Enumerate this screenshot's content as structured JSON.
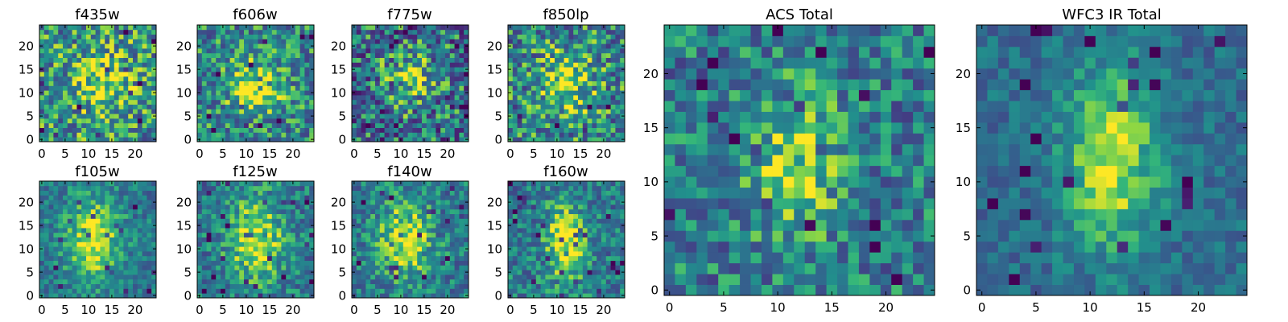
{
  "figure": {
    "panels": [
      {
        "title": "f435w",
        "xticks": [
          "0",
          "5",
          "10",
          "15",
          "20"
        ],
        "yticks": [
          "0",
          "5",
          "10",
          "15",
          "20"
        ]
      },
      {
        "title": "f606w",
        "xticks": [
          "0",
          "5",
          "10",
          "15",
          "20"
        ],
        "yticks": [
          "0",
          "5",
          "10",
          "15",
          "20"
        ]
      },
      {
        "title": "f775w",
        "xticks": [
          "0",
          "5",
          "10",
          "15",
          "20"
        ],
        "yticks": [
          "0",
          "5",
          "10",
          "15",
          "20"
        ]
      },
      {
        "title": "f850lp",
        "xticks": [
          "0",
          "5",
          "10",
          "15",
          "20"
        ],
        "yticks": [
          "0",
          "5",
          "10",
          "15",
          "20"
        ]
      },
      {
        "title": "f105w",
        "xticks": [
          "0",
          "5",
          "10",
          "15",
          "20"
        ],
        "yticks": [
          "0",
          "5",
          "10",
          "15",
          "20"
        ]
      },
      {
        "title": "f125w",
        "xticks": [
          "0",
          "5",
          "10",
          "15",
          "20"
        ],
        "yticks": [
          "0",
          "5",
          "10",
          "15",
          "20"
        ]
      },
      {
        "title": "f140w",
        "xticks": [
          "0",
          "5",
          "10",
          "15",
          "20"
        ],
        "yticks": [
          "0",
          "5",
          "10",
          "15",
          "20"
        ]
      },
      {
        "title": "f160w",
        "xticks": [
          "0",
          "5",
          "10",
          "15",
          "20"
        ],
        "yticks": [
          "0",
          "5",
          "10",
          "15",
          "20"
        ]
      },
      {
        "title": "ACS Total",
        "xticks": [
          "0",
          "5",
          "10",
          "15",
          "20"
        ],
        "yticks": [
          "0",
          "5",
          "10",
          "15",
          "20"
        ]
      },
      {
        "title": "WFC3 IR Total",
        "xticks": [
          "0",
          "5",
          "10",
          "15",
          "20"
        ],
        "yticks": [
          "0",
          "5",
          "10",
          "15",
          "20"
        ]
      }
    ]
  },
  "chart_data": [
    {
      "type": "heatmap",
      "title": "f435w",
      "grid_size": 25,
      "xlim": [
        -0.5,
        24.5
      ],
      "ylim": [
        -0.5,
        24.5
      ],
      "colormap": "viridis",
      "peak": [
        13,
        12
      ],
      "spread": [
        4,
        4
      ],
      "peak_level": 0.35,
      "background": 0.6,
      "noise": 0.45,
      "grid": false
    },
    {
      "type": "heatmap",
      "title": "f606w",
      "grid_size": 25,
      "xlim": [
        -0.5,
        24.5
      ],
      "ylim": [
        -0.5,
        24.5
      ],
      "colormap": "viridis",
      "peak": [
        12,
        11
      ],
      "spread": [
        4,
        4
      ],
      "peak_level": 0.4,
      "background": 0.55,
      "noise": 0.4,
      "grid": false
    },
    {
      "type": "heatmap",
      "title": "f775w",
      "grid_size": 25,
      "xlim": [
        -0.5,
        24.5
      ],
      "ylim": [
        -0.5,
        24.5
      ],
      "colormap": "viridis",
      "peak": [
        12,
        13
      ],
      "spread": [
        4,
        5
      ],
      "peak_level": 0.3,
      "background": 0.45,
      "noise": 0.5,
      "grid": false
    },
    {
      "type": "heatmap",
      "title": "f850lp",
      "grid_size": 25,
      "xlim": [
        -0.5,
        24.5
      ],
      "ylim": [
        -0.5,
        24.5
      ],
      "colormap": "viridis",
      "peak": [
        12,
        12
      ],
      "spread": [
        4,
        5
      ],
      "peak_level": 0.35,
      "background": 0.55,
      "noise": 0.45,
      "grid": false
    },
    {
      "type": "heatmap",
      "title": "f105w",
      "grid_size": 25,
      "xlim": [
        -0.5,
        24.5
      ],
      "ylim": [
        -0.5,
        24.5
      ],
      "colormap": "viridis",
      "peak": [
        11,
        12
      ],
      "spread": [
        4,
        6
      ],
      "peak_level": 0.5,
      "background": 0.5,
      "noise": 0.25,
      "grid": false
    },
    {
      "type": "heatmap",
      "title": "f125w",
      "grid_size": 25,
      "xlim": [
        -0.5,
        24.5
      ],
      "ylim": [
        -0.5,
        24.5
      ],
      "colormap": "viridis",
      "peak": [
        12,
        12
      ],
      "spread": [
        4,
        6
      ],
      "peak_level": 0.5,
      "background": 0.5,
      "noise": 0.3,
      "grid": false
    },
    {
      "type": "heatmap",
      "title": "f140w",
      "grid_size": 25,
      "xlim": [
        -0.5,
        24.5
      ],
      "ylim": [
        -0.5,
        24.5
      ],
      "colormap": "viridis",
      "peak": [
        11,
        12
      ],
      "spread": [
        4,
        6
      ],
      "peak_level": 0.45,
      "background": 0.5,
      "noise": 0.3,
      "grid": false
    },
    {
      "type": "heatmap",
      "title": "f160w",
      "grid_size": 25,
      "xlim": [
        -0.5,
        24.5
      ],
      "ylim": [
        -0.5,
        24.5
      ],
      "colormap": "viridis",
      "peak": [
        12,
        11
      ],
      "spread": [
        3,
        6
      ],
      "peak_level": 0.5,
      "background": 0.5,
      "noise": 0.3,
      "grid": false
    },
    {
      "type": "heatmap",
      "title": "ACS Total",
      "grid_size": 25,
      "xlim": [
        -0.5,
        24.5
      ],
      "ylim": [
        -0.5,
        24.5
      ],
      "colormap": "viridis",
      "peak": [
        12,
        12
      ],
      "spread": [
        3,
        5
      ],
      "peak_level": 0.4,
      "background": 0.5,
      "noise": 0.35,
      "grid": false
    },
    {
      "type": "heatmap",
      "title": "WFC3 IR Total",
      "grid_size": 25,
      "xlim": [
        -0.5,
        24.5
      ],
      "ylim": [
        -0.5,
        24.5
      ],
      "colormap": "viridis",
      "peak": [
        12,
        12
      ],
      "spread": [
        3,
        6
      ],
      "peak_level": 0.5,
      "background": 0.45,
      "noise": 0.2,
      "grid": false
    }
  ]
}
